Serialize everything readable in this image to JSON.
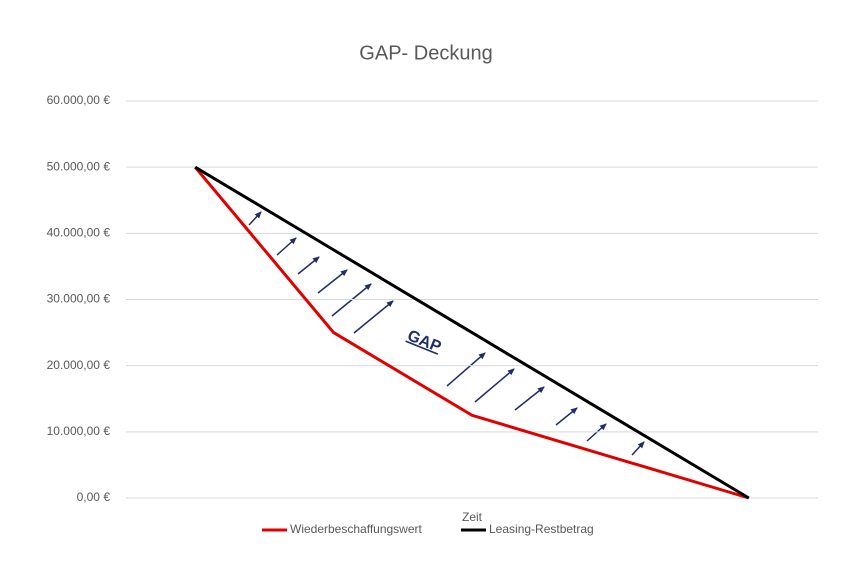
{
  "chart_data": {
    "type": "line",
    "title": "GAP- Deckung",
    "x_label": "Zeit",
    "annotation": "GAP",
    "categories": [
      null,
      null,
      null,
      null,
      null
    ],
    "series": [
      {
        "name": "Wiederbeschaffungswert",
        "color": "#e00000",
        "values": [
          50000,
          25000,
          12500,
          6250,
          0
        ]
      },
      {
        "name": "Leasing-Restbetrag",
        "color": "#000000",
        "values": [
          50000,
          37500,
          25000,
          12500,
          0
        ]
      }
    ],
    "ylim": [
      0,
      60000
    ],
    "yticks": [
      {
        "value": 0,
        "label": "0,00 €"
      },
      {
        "value": 10000,
        "label": "10.000,00 €"
      },
      {
        "value": 20000,
        "label": "20.000,00 €"
      },
      {
        "value": 30000,
        "label": "30.000,00 €"
      },
      {
        "value": 40000,
        "label": "40.000,00 €"
      },
      {
        "value": 50000,
        "label": "50.000,00 €"
      },
      {
        "value": 60000,
        "label": "60.000,00 €"
      }
    ],
    "grid": true,
    "legend": "bottom"
  }
}
